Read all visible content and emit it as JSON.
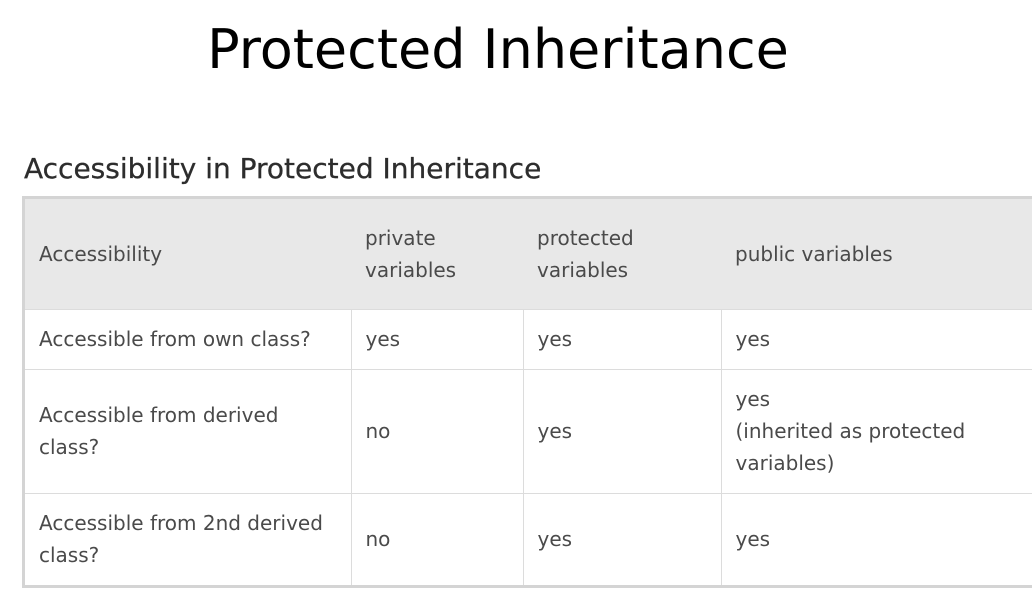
{
  "slide": {
    "title": "Protected Inheritance"
  },
  "section": {
    "heading": "Accessibility in Protected Inheritance"
  },
  "table": {
    "headers": [
      [
        "Accessibility"
      ],
      [
        "private",
        "variables"
      ],
      [
        "protected",
        "variables"
      ],
      [
        "public variables"
      ]
    ],
    "rows": [
      {
        "label": [
          "Accessible from own class?"
        ],
        "private": [
          "yes"
        ],
        "protected": [
          "yes"
        ],
        "public": [
          "yes"
        ]
      },
      {
        "label": [
          "Accessible from derived",
          "class?"
        ],
        "private": [
          "no"
        ],
        "protected": [
          "yes"
        ],
        "public": [
          "yes",
          "(inherited as protected",
          "variables)"
        ]
      },
      {
        "label": [
          "Accessible from 2nd derived",
          "class?"
        ],
        "private": [
          "no"
        ],
        "protected": [
          "yes"
        ],
        "public": [
          "yes"
        ]
      }
    ]
  }
}
